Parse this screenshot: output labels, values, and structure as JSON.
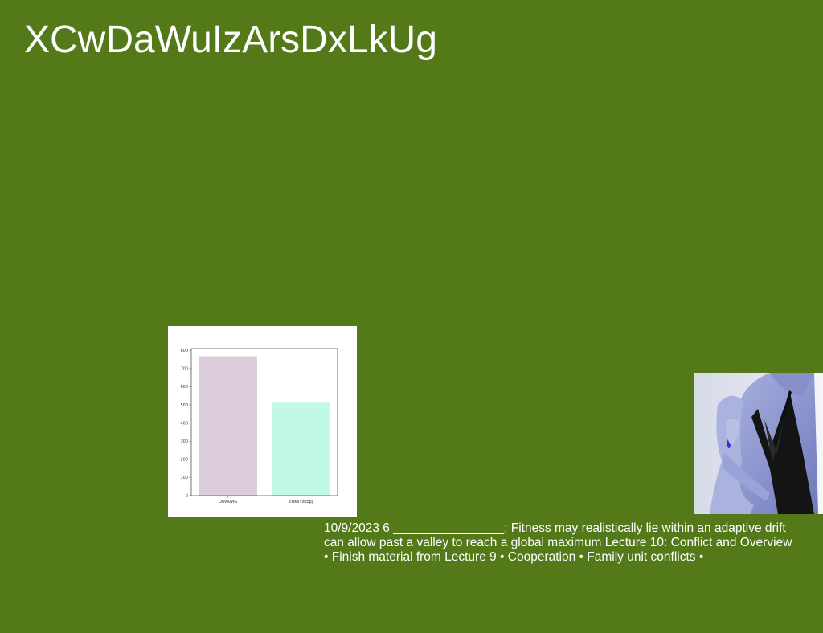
{
  "page": {
    "background": "#537918",
    "title": "XCwDaWuIzArsDxLkUg",
    "body_text": "10/9/2023 6 ________________: Fitness may realistically lie within an adaptive drift can allow past a valley to reach a global maximum Lecture 10: Conflict and Overview • Finish material from Lecture 9 • Cooperation • Family unit conflicts •"
  },
  "photo": {
    "description_icon": "woman-portrait-photo"
  },
  "chart_data": {
    "type": "bar",
    "title": "",
    "xlabel": "",
    "ylabel": "",
    "categories": [
      "OhVRwiG",
      "cRKxYzEEpj"
    ],
    "values": [
      768,
      512
    ],
    "colors": [
      "#dccbd9",
      "#c0f9e6"
    ],
    "ylim": [
      0,
      810
    ],
    "yticks": [
      0,
      100,
      200,
      300,
      400,
      500,
      600,
      700,
      800
    ],
    "grid": false,
    "legend": "none"
  }
}
